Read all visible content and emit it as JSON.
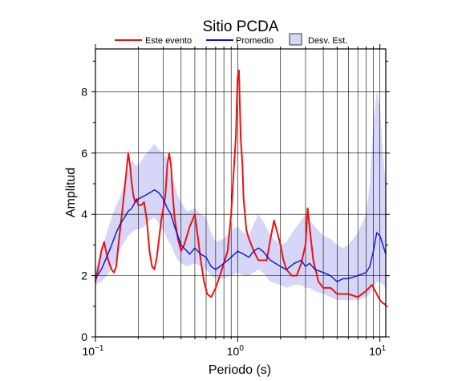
{
  "chart_data": {
    "type": "line",
    "title": "Sitio PCDA",
    "xlabel": "Periodo (s)",
    "ylabel": "Amplitud",
    "xscale": "log",
    "xlim": [
      0.1,
      11
    ],
    "ylim": [
      0,
      9.4
    ],
    "grid": true,
    "legend_placement": "top",
    "x_tick_labels": [
      {
        "value": 0.1,
        "base": "10",
        "exp": "−1"
      },
      {
        "value": 1,
        "base": "10",
        "exp": "0"
      },
      {
        "value": 10,
        "base": "10",
        "exp": "1"
      }
    ],
    "y_ticks": [
      0,
      2,
      4,
      6,
      8
    ],
    "legend": {
      "event_label": "Este evento",
      "mean_label": "Promedio",
      "std_label": "Desv. Est."
    },
    "colors": {
      "event": "#ee1111",
      "mean": "#1111cc",
      "std_fill": "#d6d6f8",
      "std_legend_stroke": "#333333"
    },
    "series": [
      {
        "name": "Este evento",
        "x": [
          0.1,
          0.105,
          0.11,
          0.115,
          0.12,
          0.125,
          0.13,
          0.135,
          0.14,
          0.145,
          0.15,
          0.155,
          0.16,
          0.165,
          0.17,
          0.175,
          0.18,
          0.185,
          0.19,
          0.195,
          0.2,
          0.21,
          0.22,
          0.23,
          0.24,
          0.25,
          0.26,
          0.27,
          0.28,
          0.29,
          0.3,
          0.31,
          0.32,
          0.33,
          0.34,
          0.35,
          0.36,
          0.38,
          0.4,
          0.42,
          0.44,
          0.46,
          0.48,
          0.5,
          0.52,
          0.55,
          0.58,
          0.61,
          0.65,
          0.7,
          0.75,
          0.8,
          0.85,
          0.9,
          0.94,
          0.97,
          1.0,
          1.02,
          1.05,
          1.08,
          1.1,
          1.15,
          1.2,
          1.3,
          1.4,
          1.5,
          1.6,
          1.7,
          1.8,
          1.9,
          2.0,
          2.1,
          2.2,
          2.4,
          2.6,
          2.8,
          3.0,
          3.1,
          3.2,
          3.4,
          3.7,
          4.0,
          4.5,
          5.0,
          5.5,
          6.0,
          7.0,
          8.0,
          8.8,
          9.5,
          10.0,
          10.5,
          11.0
        ],
        "y": [
          1.8,
          2.3,
          2.8,
          3.1,
          2.7,
          2.4,
          2.2,
          2.1,
          2.3,
          3.0,
          3.6,
          4.2,
          4.8,
          5.4,
          6.0,
          5.6,
          5.0,
          4.6,
          4.4,
          4.5,
          4.3,
          4.3,
          4.4,
          3.8,
          2.8,
          2.3,
          2.2,
          2.6,
          3.2,
          3.8,
          4.2,
          4.6,
          5.6,
          6.0,
          5.6,
          4.6,
          3.9,
          3.2,
          2.8,
          3.0,
          3.3,
          3.6,
          3.8,
          4.0,
          3.4,
          2.5,
          1.8,
          1.4,
          1.3,
          1.6,
          2.0,
          2.4,
          2.8,
          4.0,
          5.5,
          6.5,
          8.5,
          8.7,
          6.5,
          5.6,
          4.5,
          3.5,
          3.2,
          2.8,
          2.5,
          2.5,
          2.5,
          3.2,
          3.8,
          3.4,
          3.0,
          2.5,
          2.2,
          2.0,
          2.0,
          2.4,
          3.0,
          4.2,
          3.6,
          2.5,
          1.8,
          1.6,
          1.6,
          1.4,
          1.4,
          1.4,
          1.3,
          1.5,
          1.7,
          1.4,
          1.2,
          1.1,
          1.05
        ]
      },
      {
        "name": "Promedio",
        "x": [
          0.1,
          0.11,
          0.12,
          0.13,
          0.14,
          0.15,
          0.16,
          0.17,
          0.18,
          0.19,
          0.2,
          0.22,
          0.24,
          0.26,
          0.28,
          0.3,
          0.32,
          0.34,
          0.36,
          0.38,
          0.4,
          0.42,
          0.44,
          0.46,
          0.5,
          0.55,
          0.6,
          0.65,
          0.7,
          0.75,
          0.8,
          0.85,
          0.9,
          0.95,
          1.0,
          1.1,
          1.2,
          1.3,
          1.4,
          1.5,
          1.7,
          2.0,
          2.2,
          2.5,
          2.8,
          3.0,
          3.2,
          3.5,
          4.0,
          4.5,
          5.0,
          5.5,
          6.0,
          7.0,
          8.0,
          8.5,
          9.0,
          9.5,
          10.0,
          10.5,
          11.0
        ],
        "y": [
          1.9,
          2.2,
          2.6,
          3.0,
          3.4,
          3.7,
          3.9,
          4.1,
          4.2,
          4.4,
          4.5,
          4.6,
          4.7,
          4.8,
          4.7,
          4.5,
          4.2,
          4.0,
          3.6,
          3.3,
          3.0,
          2.9,
          2.8,
          2.7,
          2.9,
          2.7,
          2.6,
          2.3,
          2.2,
          2.3,
          2.4,
          2.5,
          2.6,
          2.7,
          2.8,
          2.7,
          2.6,
          2.8,
          2.9,
          2.8,
          2.5,
          2.3,
          2.2,
          2.4,
          2.5,
          2.3,
          2.4,
          2.2,
          2.1,
          2.0,
          1.8,
          1.9,
          1.9,
          2.0,
          2.1,
          2.3,
          2.8,
          3.4,
          3.3,
          3.0,
          2.7
        ]
      }
    ],
    "std_band": {
      "name": "Desv. Est.",
      "x": [
        0.1,
        0.11,
        0.12,
        0.13,
        0.14,
        0.15,
        0.16,
        0.17,
        0.18,
        0.19,
        0.2,
        0.22,
        0.24,
        0.26,
        0.28,
        0.3,
        0.32,
        0.34,
        0.36,
        0.38,
        0.4,
        0.44,
        0.5,
        0.55,
        0.6,
        0.65,
        0.7,
        0.8,
        0.9,
        1.0,
        1.1,
        1.2,
        1.3,
        1.4,
        1.5,
        1.7,
        2.0,
        2.2,
        2.5,
        2.8,
        3.0,
        3.2,
        3.5,
        4.0,
        4.5,
        5.0,
        5.5,
        6.0,
        7.0,
        8.0,
        8.5,
        9.0,
        9.5,
        10.0,
        10.5,
        11.0
      ],
      "upper": [
        2.2,
        2.8,
        3.4,
        3.9,
        4.3,
        4.6,
        5.0,
        5.4,
        5.8,
        5.6,
        5.6,
        5.9,
        6.1,
        6.3,
        6.1,
        6.0,
        5.8,
        5.2,
        5.0,
        4.6,
        4.4,
        4.1,
        4.2,
        4.0,
        3.9,
        3.4,
        3.1,
        3.2,
        3.5,
        3.6,
        3.4,
        3.3,
        3.7,
        4.0,
        3.8,
        3.3,
        3.0,
        3.1,
        3.5,
        3.8,
        4.0,
        3.8,
        3.6,
        3.3,
        3.2,
        3.0,
        2.9,
        3.0,
        3.4,
        4.0,
        5.0,
        7.0,
        8.0,
        7.5,
        6.0,
        5.0
      ],
      "lower": [
        1.7,
        1.8,
        2.0,
        2.2,
        2.5,
        2.9,
        3.1,
        3.3,
        3.4,
        3.5,
        3.5,
        3.6,
        3.8,
        3.9,
        3.7,
        3.5,
        3.2,
        3.0,
        2.7,
        2.5,
        2.4,
        2.3,
        2.4,
        2.3,
        2.2,
        2.0,
        1.9,
        1.9,
        2.0,
        2.1,
        2.0,
        2.0,
        2.1,
        2.2,
        2.1,
        1.8,
        1.7,
        1.6,
        1.7,
        1.7,
        1.6,
        1.6,
        1.5,
        1.4,
        1.3,
        1.2,
        1.2,
        1.2,
        1.2,
        1.3,
        1.4,
        1.6,
        1.8,
        1.8,
        1.7,
        1.6
      ]
    }
  }
}
